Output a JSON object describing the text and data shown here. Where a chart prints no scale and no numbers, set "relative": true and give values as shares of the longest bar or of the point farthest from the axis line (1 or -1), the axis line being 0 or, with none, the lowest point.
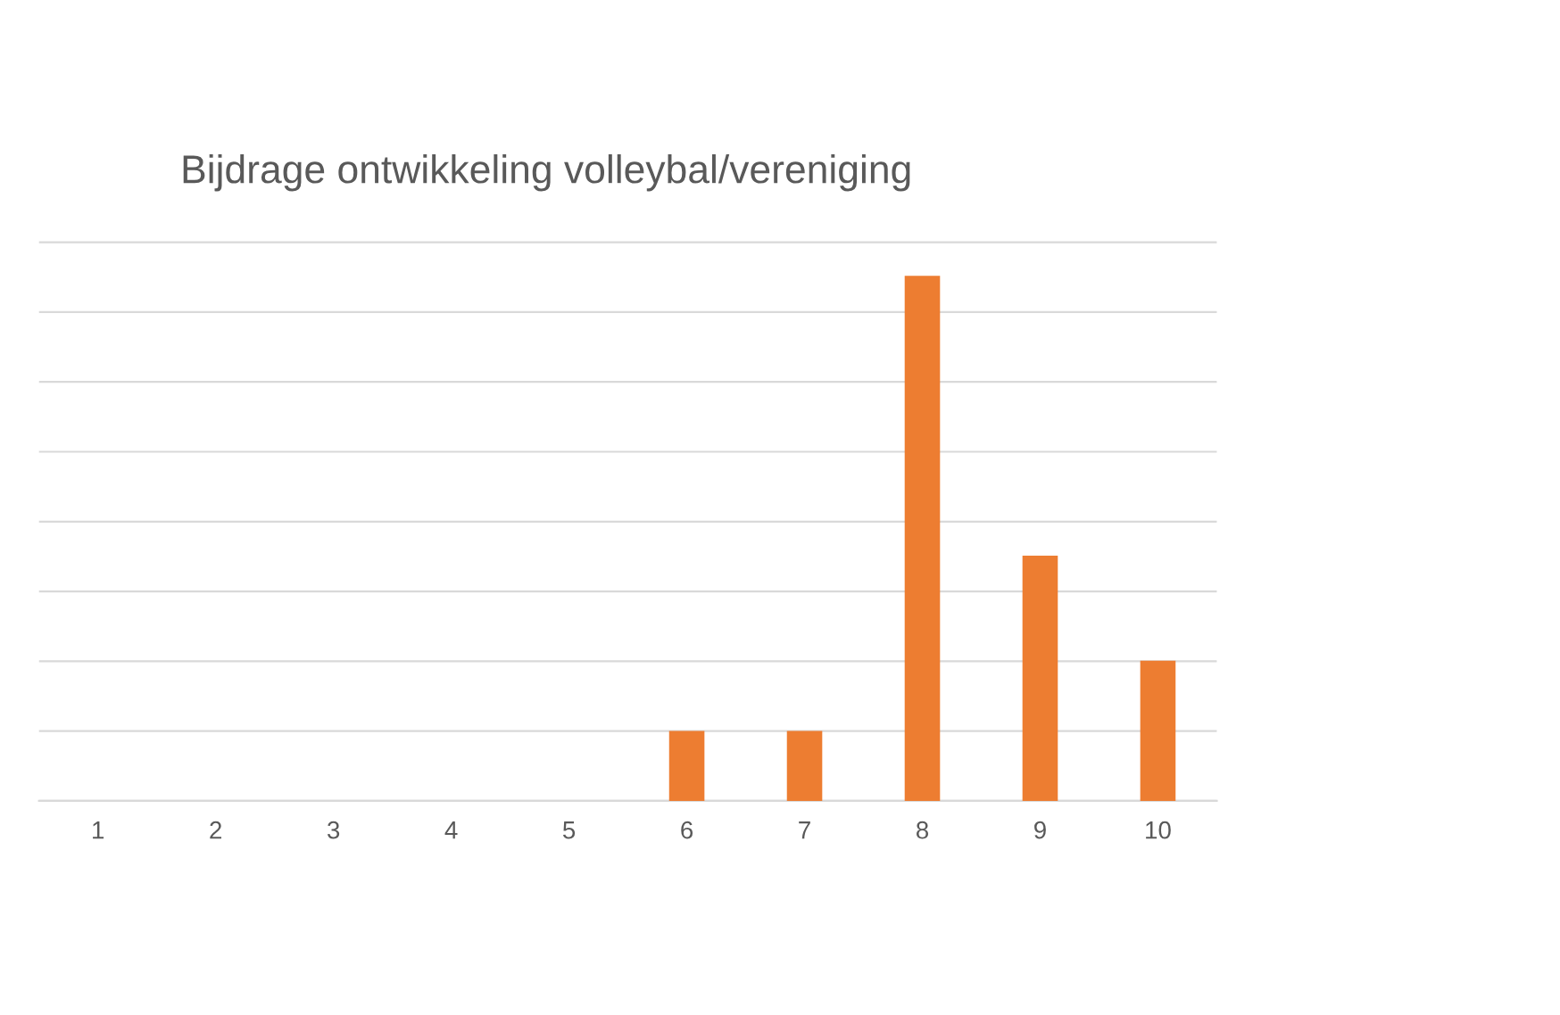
{
  "chart_data": {
    "type": "bar",
    "title": "Bijdrage ontwikkeling volleybal/vereniging",
    "categories": [
      "1",
      "2",
      "3",
      "4",
      "5",
      "6",
      "7",
      "8",
      "9",
      "10"
    ],
    "values": [
      0,
      0,
      0,
      0,
      0,
      0.133,
      0.133,
      1,
      0.467,
      0.267
    ],
    "color": "#ed7d31",
    "relative": true,
    "grid": "y"
  }
}
